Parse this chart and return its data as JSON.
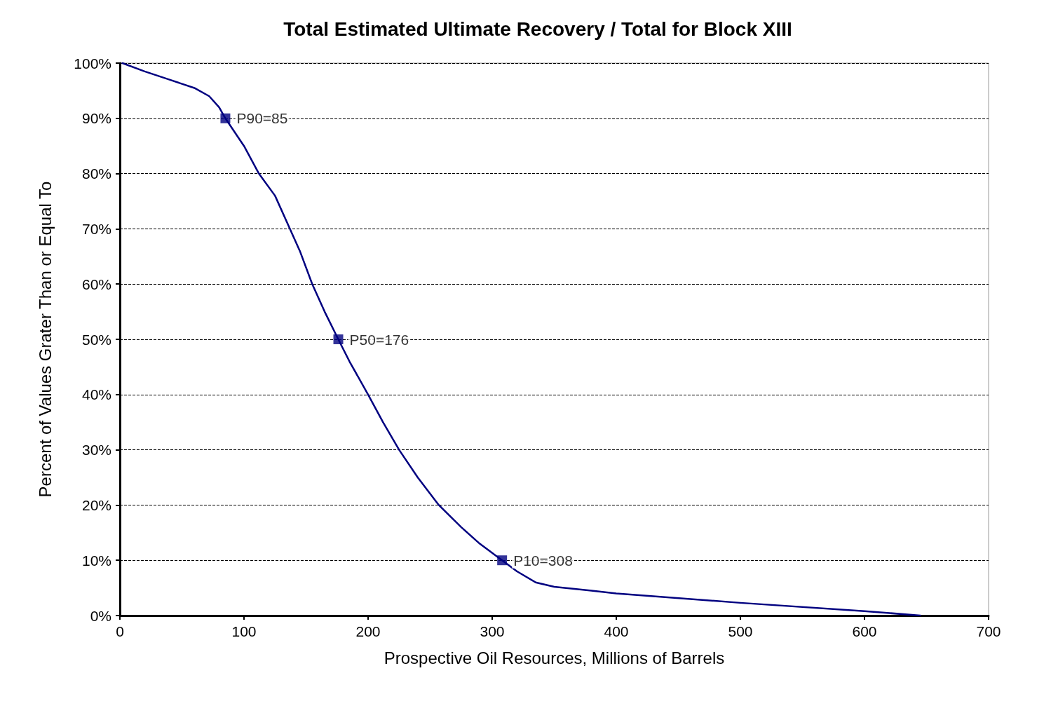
{
  "chart_data": {
    "type": "line",
    "title": "Total Estimated Ultimate Recovery / Total for Block XIII",
    "xlabel": "Prospective Oil Resources, Millions of Barrels",
    "ylabel": "Percent of Values Grater Than or Equal To",
    "xlim": [
      0,
      700
    ],
    "xticks": [
      0,
      100,
      200,
      300,
      400,
      500,
      600,
      700
    ],
    "ylim": [
      0,
      100
    ],
    "yticks": [
      {
        "value": 0,
        "label": "0%"
      },
      {
        "value": 10,
        "label": "10%"
      },
      {
        "value": 20,
        "label": "20%"
      },
      {
        "value": 30,
        "label": "30%"
      },
      {
        "value": 40,
        "label": "40%"
      },
      {
        "value": 50,
        "label": "50%"
      },
      {
        "value": 60,
        "label": "60%"
      },
      {
        "value": 70,
        "label": "70%"
      },
      {
        "value": 80,
        "label": "80%"
      },
      {
        "value": 90,
        "label": "90%"
      },
      {
        "value": 100,
        "label": "100%"
      }
    ],
    "grid": "y",
    "series": [
      {
        "color": "#000080",
        "marker": "none",
        "x": [
          2,
          20,
          40,
          60,
          72,
          80,
          85,
          100,
          112,
          125,
          135,
          145,
          155,
          165,
          176,
          185,
          200,
          212,
          225,
          240,
          257,
          275,
          290,
          308,
          320,
          335,
          350,
          380,
          400,
          500,
          600,
          645
        ],
        "values": [
          100,
          98.5,
          97,
          95.5,
          94,
          92,
          90,
          85,
          80,
          76,
          71,
          66,
          60,
          55,
          50,
          46,
          40,
          35,
          30,
          25,
          20,
          16,
          13,
          10,
          8,
          6,
          5.2,
          4.5,
          4,
          2.3,
          0.8,
          0
        ]
      },
      {
        "type": "scatter",
        "color": "#000080",
        "marker": "square",
        "x": [
          85,
          176,
          308
        ],
        "values": [
          90,
          50,
          10
        ]
      }
    ],
    "annotations": [
      {
        "text": "P90=85",
        "x": 85,
        "y": 90
      },
      {
        "text": "P50=176",
        "x": 176,
        "y": 50
      },
      {
        "text": "P10=308",
        "x": 308,
        "y": 10
      }
    ]
  }
}
